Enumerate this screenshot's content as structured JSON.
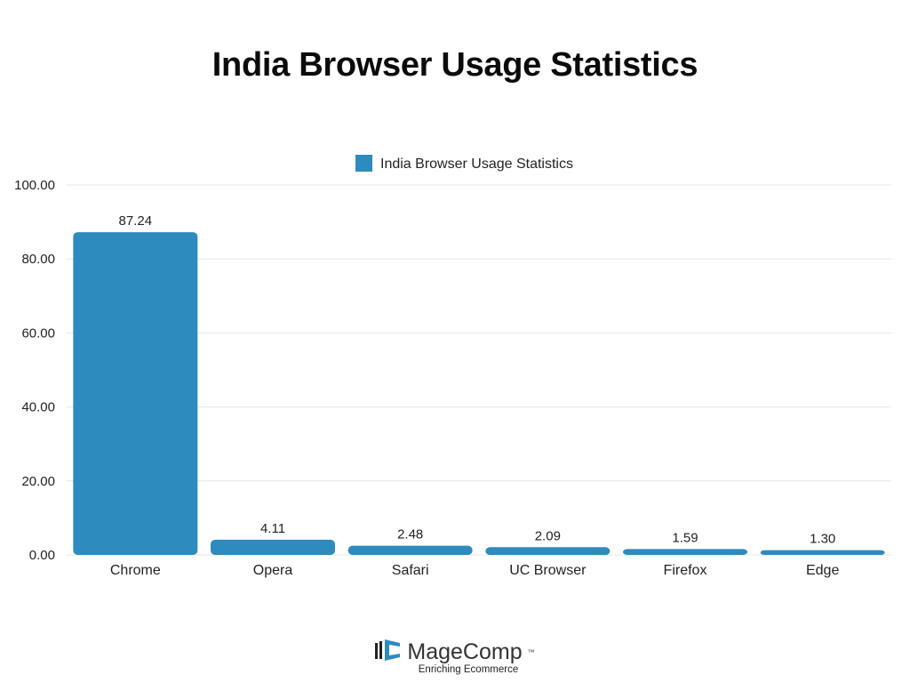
{
  "title": "India Browser Usage Statistics",
  "chart_data": {
    "type": "bar",
    "title": "India Browser Usage Statistics",
    "categories": [
      "Chrome",
      "Opera",
      "Safari",
      "UC Browser",
      "Firefox",
      "Edge"
    ],
    "series": [
      {
        "name": "India Browser Usage Statistics",
        "values": [
          87.24,
          4.11,
          2.48,
          2.09,
          1.59,
          1.3
        ],
        "labels": [
          "87.24",
          "4.11",
          "2.48",
          "2.09",
          "1.59",
          "1.30"
        ]
      }
    ],
    "yticks": [
      "0.00",
      "20.00",
      "40.00",
      "60.00",
      "80.00",
      "100.00"
    ],
    "ylim": [
      0,
      100
    ],
    "xlabel": "",
    "ylabel": "",
    "grid": true,
    "legend": "top-center",
    "colors": {
      "bar": "#2e8bbd",
      "grid": "#e6e6e6",
      "text": "#222222"
    }
  },
  "footer": {
    "brand": "MageComp",
    "trademark": "™",
    "tagline": "Enriching Ecommerce",
    "logo_icon": "magecomp-logo-icon"
  }
}
